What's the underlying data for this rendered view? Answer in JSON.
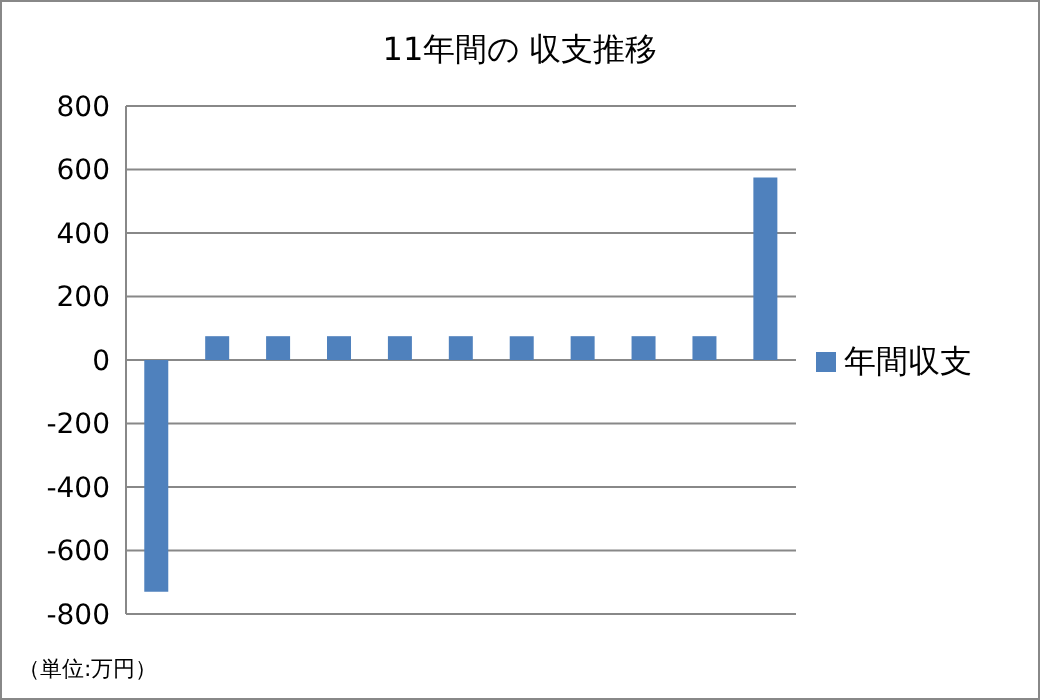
{
  "chart_data": {
    "type": "bar",
    "title": "11年間の 収支推移",
    "categories": [
      null,
      null,
      null,
      null,
      null,
      null,
      null,
      null,
      null,
      null,
      null
    ],
    "series": [
      {
        "name": "年間収支",
        "color": "#4f81bd",
        "values": [
          -730,
          75,
          75,
          75,
          75,
          75,
          75,
          75,
          75,
          75,
          575
        ]
      }
    ],
    "ylim": [
      -800,
      800
    ],
    "yticks": [
      -800,
      -600,
      -400,
      -200,
      0,
      200,
      400,
      600,
      800
    ],
    "grid": "y",
    "legend": "right",
    "annotations": [
      "（単位:万円）"
    ]
  }
}
